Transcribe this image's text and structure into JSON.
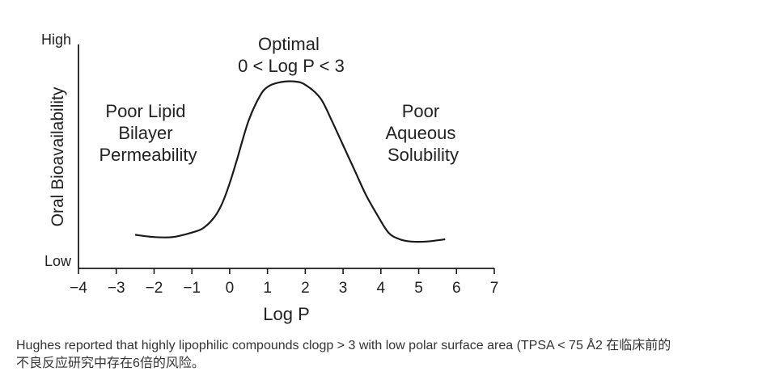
{
  "chart_data": {
    "type": "line",
    "xlabel": "Log P",
    "ylabel": "Oral Bioavailability",
    "y_ticks": {
      "high": "High",
      "low": "Low"
    },
    "xlim": [
      -4,
      7
    ],
    "ylim": [
      0,
      1
    ],
    "x_ticks": [
      "−4",
      "−3",
      "−2",
      "−1",
      "0",
      "1",
      "2",
      "3",
      "4",
      "5",
      "6",
      "7"
    ],
    "x_tick_values": [
      -4,
      -3,
      -2,
      -1,
      0,
      1,
      2,
      3,
      4,
      5,
      6,
      7
    ],
    "series": [
      {
        "x": [
          -2.5,
          -2.0,
          -1.5,
          -1.0,
          -0.7,
          -0.4,
          -0.2,
          0.0,
          0.2,
          0.5,
          0.8,
          1.0,
          1.3,
          1.7,
          2.0,
          2.4,
          2.7,
          3.0,
          3.3,
          3.6,
          3.9,
          4.2,
          4.5,
          4.8,
          5.2,
          5.7
        ],
        "y": [
          0.15,
          0.14,
          0.14,
          0.16,
          0.18,
          0.23,
          0.29,
          0.38,
          0.49,
          0.66,
          0.77,
          0.81,
          0.83,
          0.835,
          0.82,
          0.76,
          0.66,
          0.55,
          0.44,
          0.33,
          0.24,
          0.16,
          0.13,
          0.12,
          0.12,
          0.13
        ]
      }
    ],
    "annotations": [
      {
        "lines": [
          "Optimal",
          "0 < Log P < 3"
        ]
      },
      {
        "lines": [
          "Poor Lipid",
          "Bilayer",
          "Permeability"
        ]
      },
      {
        "lines": [
          "Poor",
          "Aqueous",
          "Solubility"
        ]
      }
    ],
    "grid": false,
    "legend": "none"
  },
  "caption": {
    "line1": "Hughes reported that highly lipophilic compounds clogp > 3 with low polar surface area (TPSA < 75 Å2 在临床前的",
    "line2": "不良反应研究中存在6倍的风险。"
  },
  "colors": {
    "line": "#1a1a1a",
    "text": "#222222",
    "caption": "#333333"
  }
}
